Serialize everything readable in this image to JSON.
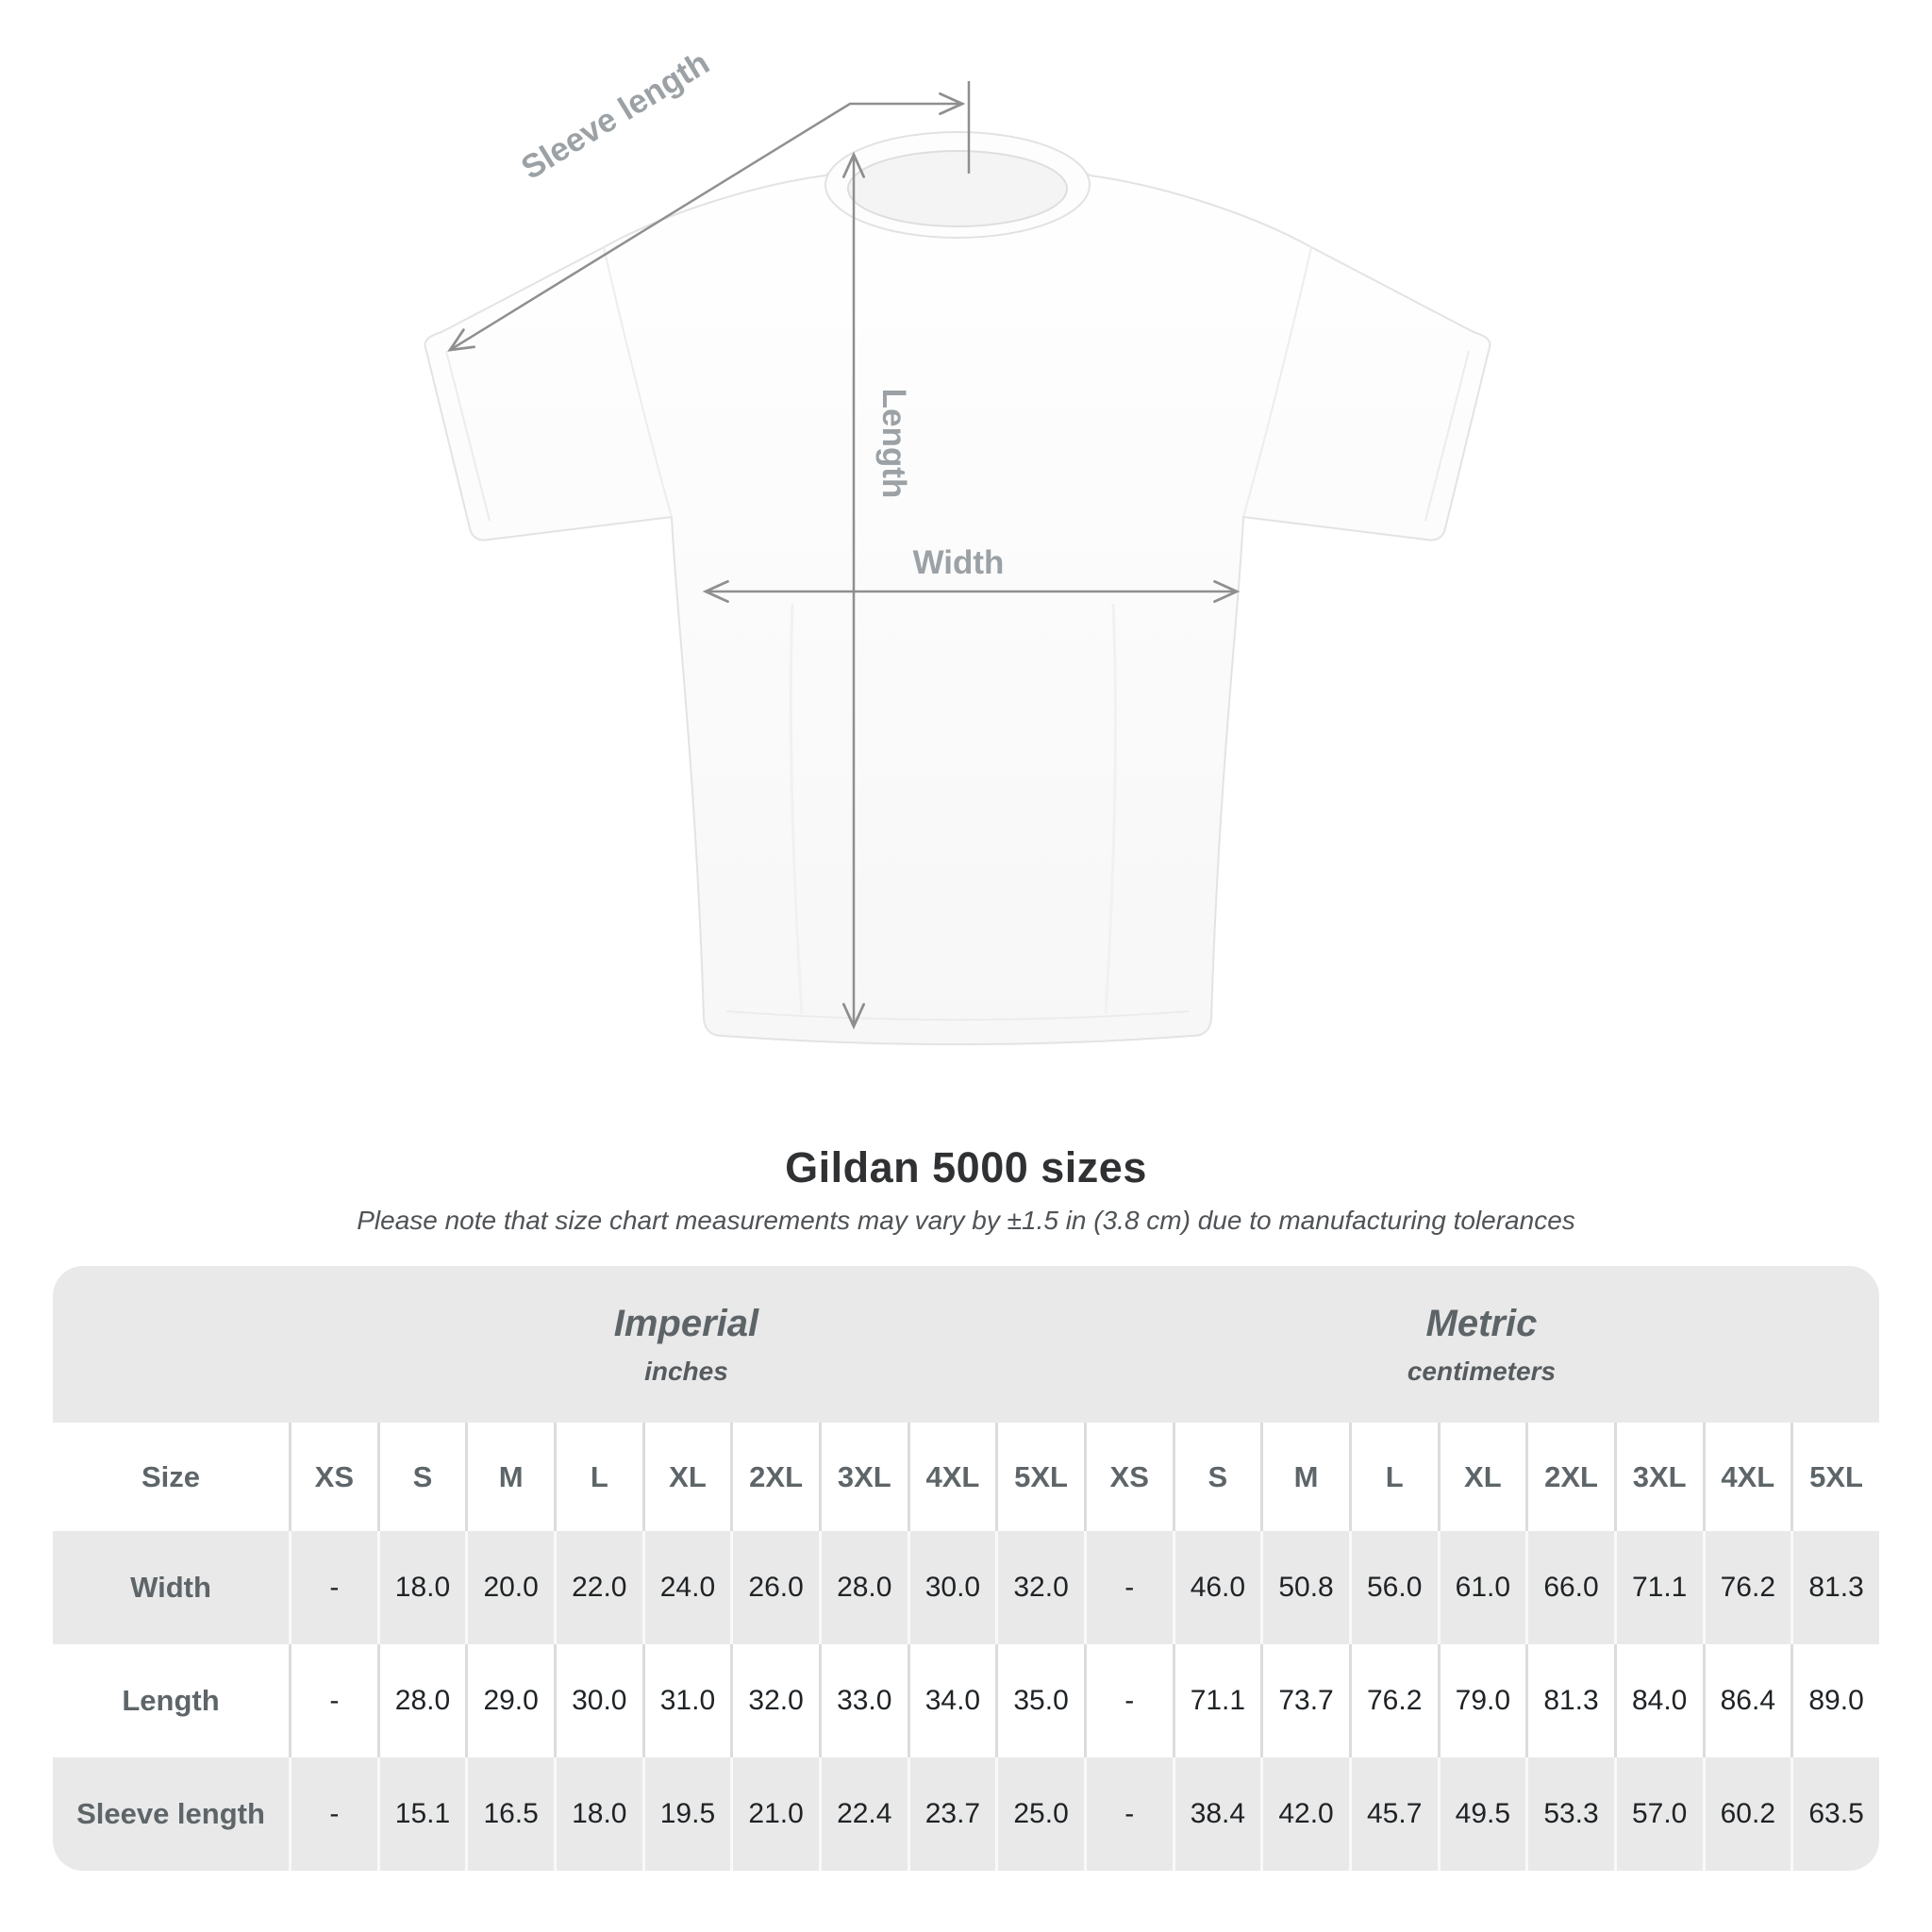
{
  "title": "Gildan 5000 sizes",
  "subtitle": "Please note that size chart measurements may vary by ±1.5 in (3.8 cm) due to manufacturing tolerances",
  "diagram": {
    "sleeve_length_label": "Sleeve length",
    "length_label": "Length",
    "width_label": "Width"
  },
  "table": {
    "size_header": "Size",
    "unit_groups": [
      {
        "label": "Imperial",
        "sublabel": "inches"
      },
      {
        "label": "Metric",
        "sublabel": "centimeters"
      }
    ],
    "sizes": [
      "XS",
      "S",
      "M",
      "L",
      "XL",
      "2XL",
      "3XL",
      "4XL",
      "5XL"
    ],
    "rows": [
      {
        "label": "Width",
        "imperial": [
          "-",
          "18.0",
          "20.0",
          "22.0",
          "24.0",
          "26.0",
          "28.0",
          "30.0",
          "32.0"
        ],
        "metric": [
          "-",
          "46.0",
          "50.8",
          "56.0",
          "61.0",
          "66.0",
          "71.1",
          "76.2",
          "81.3"
        ]
      },
      {
        "label": "Length",
        "imperial": [
          "-",
          "28.0",
          "29.0",
          "30.0",
          "31.0",
          "32.0",
          "33.0",
          "34.0",
          "35.0"
        ],
        "metric": [
          "-",
          "71.1",
          "73.7",
          "76.2",
          "79.0",
          "81.3",
          "84.0",
          "86.4",
          "89.0"
        ]
      },
      {
        "label": "Sleeve length",
        "imperial": [
          "-",
          "15.1",
          "16.5",
          "18.0",
          "19.5",
          "21.0",
          "22.4",
          "23.7",
          "25.0"
        ],
        "metric": [
          "-",
          "38.4",
          "42.0",
          "45.7",
          "49.5",
          "53.3",
          "57.0",
          "60.2",
          "63.5"
        ]
      }
    ]
  },
  "chart_data": {
    "type": "table",
    "title": "Gildan 5000 sizes",
    "note": "Please note that size chart measurements may vary by ±1.5 in (3.8 cm) due to manufacturing tolerances",
    "columns": [
      "XS",
      "S",
      "M",
      "L",
      "XL",
      "2XL",
      "3XL",
      "4XL",
      "5XL"
    ],
    "series": [
      {
        "name": "Width (inches)",
        "values": [
          null,
          18.0,
          20.0,
          22.0,
          24.0,
          26.0,
          28.0,
          30.0,
          32.0
        ]
      },
      {
        "name": "Length (inches)",
        "values": [
          null,
          28.0,
          29.0,
          30.0,
          31.0,
          32.0,
          33.0,
          34.0,
          35.0
        ]
      },
      {
        "name": "Sleeve length (inches)",
        "values": [
          null,
          15.1,
          16.5,
          18.0,
          19.5,
          21.0,
          22.4,
          23.7,
          25.0
        ]
      },
      {
        "name": "Width (cm)",
        "values": [
          null,
          46.0,
          50.8,
          56.0,
          61.0,
          66.0,
          71.1,
          76.2,
          81.3
        ]
      },
      {
        "name": "Length (cm)",
        "values": [
          null,
          71.1,
          73.7,
          76.2,
          79.0,
          81.3,
          84.0,
          86.4,
          89.0
        ]
      },
      {
        "name": "Sleeve length (cm)",
        "values": [
          null,
          38.4,
          42.0,
          45.7,
          49.5,
          53.3,
          57.0,
          60.2,
          63.5
        ]
      }
    ]
  },
  "colors": {
    "band_gray": "#e9e9e9",
    "diagram_line": "#8f8f8f",
    "diagram_label": "#9ba1a5",
    "header_text": "#5e6569",
    "data_text": "#1f2326"
  }
}
